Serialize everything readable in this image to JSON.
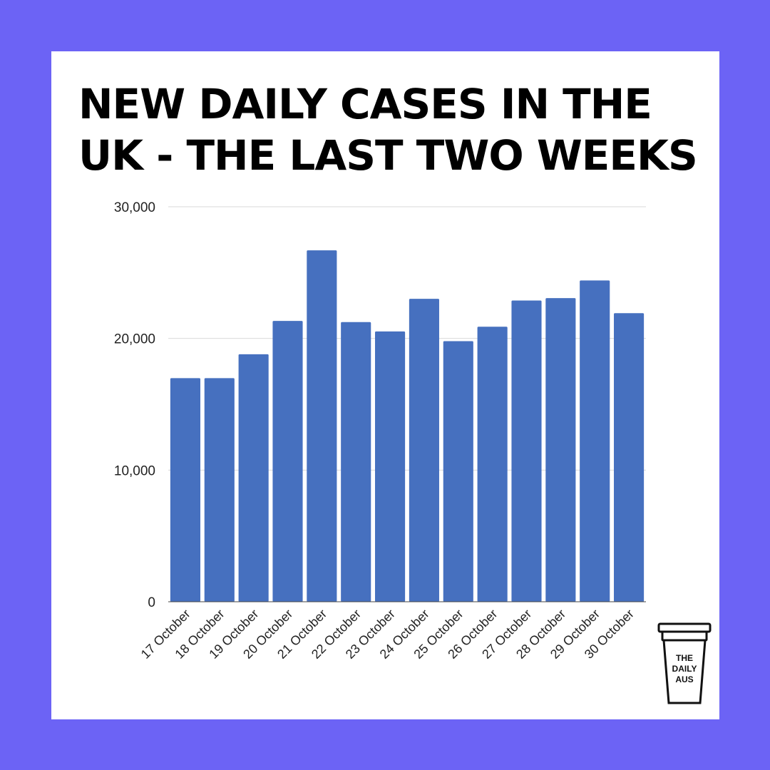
{
  "colors": {
    "frame": "#6c63f5",
    "card": "#ffffff",
    "bar": "#4670bf",
    "title": "#000000",
    "grid": "#d9d9d9"
  },
  "title": {
    "line1": "NEW DAILY CASES IN THE",
    "line2": "UK - THE LAST TWO WEEKS"
  },
  "logo": {
    "line1": "THE",
    "line2": "DAILY",
    "line3": "AUS"
  },
  "chart_data": {
    "type": "bar",
    "title": "NEW DAILY CASES IN THE UK - THE LAST TWO WEEKS",
    "xlabel": "",
    "ylabel": "",
    "categories": [
      "17 October",
      "18 October",
      "19 October",
      "20 October",
      "21 October",
      "22 October",
      "23 October",
      "24 October",
      "25 October",
      "26 October",
      "27 October",
      "28 October",
      "29 October",
      "30 October"
    ],
    "values": [
      16980,
      16980,
      18800,
      21330,
      26690,
      21240,
      20530,
      23010,
      19790,
      20890,
      22880,
      23060,
      24400,
      21920
    ],
    "ylim": [
      0,
      30000
    ],
    "yticks": [
      0,
      10000,
      20000,
      30000
    ],
    "ytick_labels": [
      "0",
      "10,000",
      "20,000",
      "30,000"
    ],
    "grid": true,
    "legend": "none"
  }
}
